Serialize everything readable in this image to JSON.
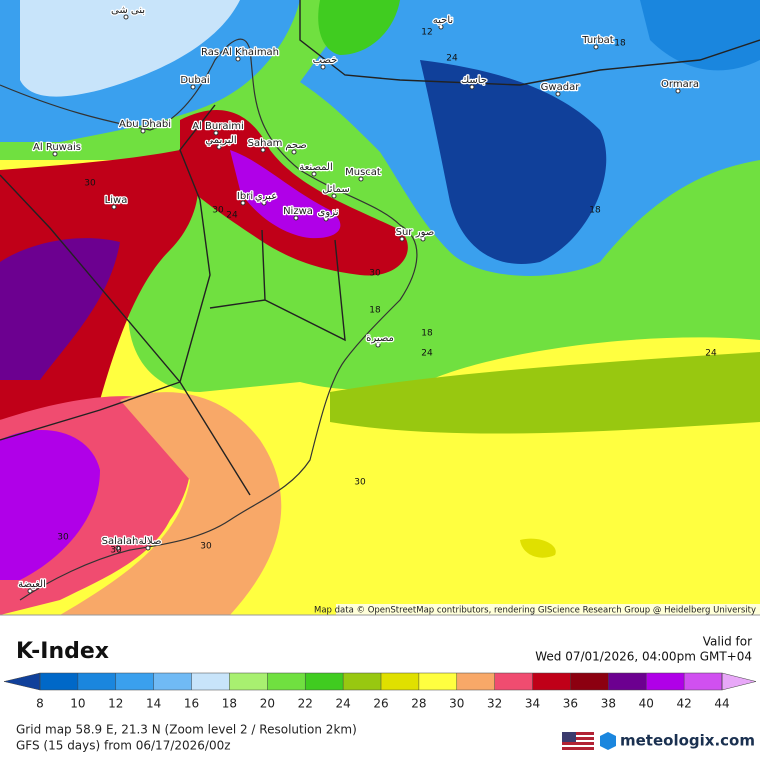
{
  "header": {
    "title": "K-Index",
    "valid_label": "Valid for",
    "valid_time": "Wed 07/01/2026, 04:00pm GMT+04"
  },
  "colorbar": {
    "ticks": [
      8,
      10,
      12,
      14,
      16,
      18,
      20,
      22,
      24,
      26,
      28,
      30,
      32,
      34,
      36,
      38,
      40,
      42,
      44
    ],
    "colors": [
      "#10409a",
      "#0068c8",
      "#1a86de",
      "#3aa0ee",
      "#70baf5",
      "#c8e4fa",
      "#a8f070",
      "#70e040",
      "#40cc20",
      "#98c810",
      "#e0e000",
      "#ffff40",
      "#f8a868",
      "#f04c70",
      "#c00018",
      "#8c0010",
      "#6c0090",
      "#b000e8",
      "#d050f0",
      "#e8a8f8"
    ]
  },
  "map": {
    "place_labels": [
      "Ras Al Khaimah",
      "Dubai",
      "Abu Dhabi",
      "Al Ruwais",
      "Al Buraimi",
      "البريمي",
      "Saham",
      "صحم",
      "المصنعة",
      "Muscat",
      "سمائل",
      "Ibri",
      "عبري",
      "Liwa",
      "Nizwa",
      "نزوى",
      "Sur",
      "صور",
      "Turbat",
      "Gwadar",
      "Ormara",
      "جاسك",
      "خصب",
      "بنی شی",
      "ناحيه",
      "مصيرة",
      "Salalah",
      "صلالة",
      "الغيضة"
    ],
    "contour_labels": [
      30,
      30,
      24,
      30,
      18,
      18,
      24,
      24,
      18,
      24,
      12,
      18,
      30,
      30,
      30,
      30
    ],
    "attribution": "Map data © OpenStreetMap contributors, rendering GIScience Research Group @ Heidelberg University"
  },
  "footer": {
    "grid_info": "Grid map 58.9 E, 21.3 N (Zoom level 2 / Resolution 2km)",
    "model_info": "GFS (15 days) from 06/17/2026/00z",
    "brand": "meteologix.com"
  }
}
